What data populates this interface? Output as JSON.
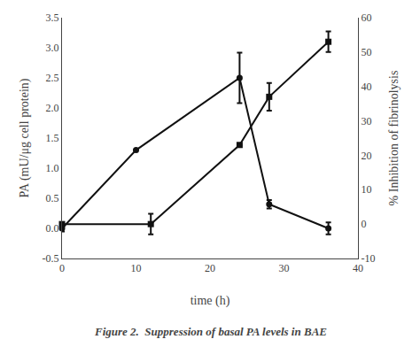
{
  "chart_data": {
    "type": "line",
    "xlabel": "time (h)",
    "ylabel": "PA (mU/μg cell protein)",
    "y2label": "% Inhibition of fibrinolysis",
    "annotations": [
      {
        "text": "Figure 2.  Suppression of basal PA levels in BAE"
      }
    ],
    "xlim": [
      0,
      40
    ],
    "xticks": [
      0,
      10,
      20,
      30,
      40
    ],
    "ylim": [
      -0.5,
      3.5
    ],
    "yticks": [
      -0.5,
      {
        "value": 0,
        "label": "0.0"
      },
      0.5,
      {
        "value": 1,
        "label": "1.0"
      },
      1.5,
      {
        "value": 2,
        "label": "2.0"
      },
      2.5,
      {
        "value": 3,
        "label": "3.0"
      },
      3.5
    ],
    "y2lim": [
      -10,
      60
    ],
    "y2ticks": [
      -10,
      0,
      10,
      20,
      30,
      40,
      50,
      60
    ],
    "grid": false,
    "series": [
      {
        "x": [
          0,
          10,
          24,
          28,
          36
        ],
        "values": [
          0.0,
          1.3,
          2.5,
          0.4,
          0.0
        ],
        "errors": [
          0.05,
          0.0,
          0.42,
          0.07,
          0.1
        ],
        "color": "#111111",
        "marker": "circle",
        "axis": "y"
      },
      {
        "x": [
          0,
          12,
          24,
          28,
          36
        ],
        "values": [
          0.0,
          0.0,
          23.0,
          37.0,
          53.0
        ],
        "errors": [
          0.3,
          3.0,
          0.0,
          4.0,
          3.0
        ],
        "color": "#111111",
        "marker": "square",
        "axis": "y2"
      }
    ]
  }
}
